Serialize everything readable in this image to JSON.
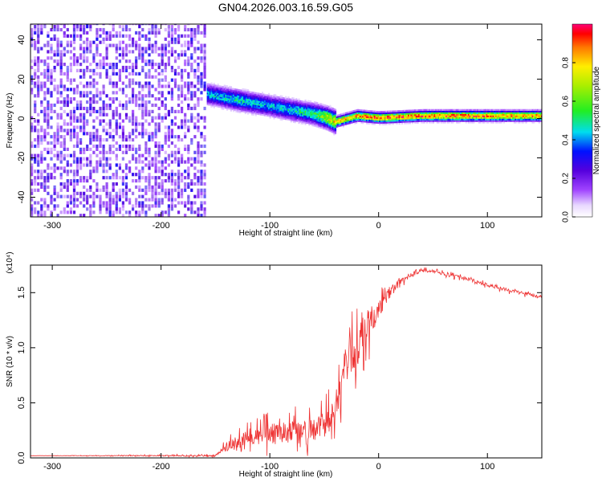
{
  "title": "GN04.2026.003.16.59.G05",
  "chart_data": [
    {
      "type": "heatmap",
      "name": "spectrogram",
      "xlabel": "Height of straight line (km)",
      "ylabel": "Frequency (Hz)",
      "xlim": [
        -320,
        150
      ],
      "ylim": [
        -50,
        48
      ],
      "xticks": [
        -300,
        -200,
        -100,
        0,
        100
      ],
      "yticks": [
        -40,
        -20,
        0,
        20,
        40
      ],
      "noise_region_x": [
        -320,
        -158
      ],
      "colorbar": {
        "label": "Normalized spectral amplitude",
        "range": [
          0,
          1
        ],
        "ticks": [
          0.0,
          0.2,
          0.4,
          0.6,
          0.8
        ]
      },
      "ridge": {
        "description": "signal ridge frequency (Hz) vs height (km)",
        "x": [
          -158,
          -130,
          -100,
          -80,
          -60,
          -48,
          -40,
          -20,
          0,
          40,
          80,
          120,
          150
        ],
        "y": [
          12,
          9,
          6,
          4,
          2,
          0,
          -2,
          1,
          0,
          1,
          1,
          1,
          1
        ],
        "amplitude": [
          0.45,
          0.5,
          0.45,
          0.5,
          0.55,
          0.75,
          0.85,
          0.9,
          0.95,
          0.95,
          0.95,
          0.9,
          0.9
        ]
      }
    },
    {
      "type": "line",
      "name": "snr",
      "xlabel": "Height of straight line (km)",
      "ylabel": "SNR (10 * v/v)",
      "multiplier_label": "(x10⁴)",
      "xlim": [
        -320,
        150
      ],
      "ylim": [
        0,
        1.75
      ],
      "xticks": [
        -300,
        -200,
        -100,
        0,
        100
      ],
      "yticks": [
        0.0,
        0.5,
        1.0,
        1.5
      ],
      "series": [
        {
          "name": "SNR",
          "color": "#ee3333",
          "x": [
            -320,
            -150,
            -140,
            -120,
            -100,
            -80,
            -60,
            -50,
            -40,
            -30,
            -20,
            -10,
            0,
            10,
            20,
            30,
            40,
            50,
            60,
            80,
            100,
            120,
            150
          ],
          "y": [
            0.02,
            0.02,
            0.1,
            0.18,
            0.22,
            0.24,
            0.25,
            0.3,
            0.45,
            0.85,
            1.0,
            1.2,
            1.35,
            1.5,
            1.6,
            1.66,
            1.7,
            1.69,
            1.67,
            1.63,
            1.57,
            1.52,
            1.46
          ],
          "noise": [
            0.0,
            0.01,
            0.06,
            0.1,
            0.13,
            0.14,
            0.15,
            0.16,
            0.18,
            0.25,
            0.28,
            0.22,
            0.12,
            0.08,
            0.04,
            0.02,
            0.02,
            0.02,
            0.02,
            0.02,
            0.02,
            0.02,
            0.02
          ]
        }
      ]
    }
  ]
}
